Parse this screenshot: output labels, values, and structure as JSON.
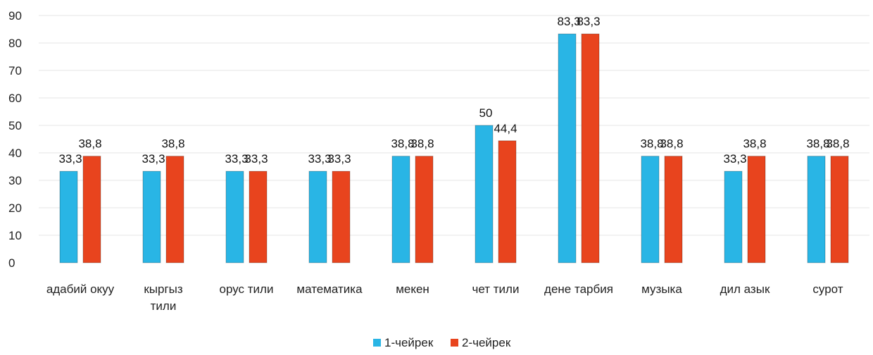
{
  "chart_data": {
    "type": "bar",
    "categories": [
      "адабий окуу",
      "кыргыз тили",
      "орус тили",
      "математика",
      "мекен",
      "чет тили",
      "дене тарбия",
      "музыка",
      "дил азык",
      "сурот"
    ],
    "series": [
      {
        "name": "1-чейрек",
        "values": [
          33.3,
          33.3,
          33.3,
          33.3,
          38.8,
          50,
          83.3,
          38.8,
          33.3,
          38.8
        ],
        "labels": [
          "33,3",
          "33,3",
          "33,3",
          "33,3",
          "38,8",
          "50",
          "83,3",
          "38,8",
          "33,3",
          "38,8"
        ]
      },
      {
        "name": "2-чейрек",
        "values": [
          38.8,
          38.8,
          33.3,
          33.3,
          38.8,
          44.4,
          83.3,
          38.8,
          38.8,
          38.8
        ],
        "labels": [
          "38,8",
          "38,8",
          "33,3",
          "33,3",
          "38,8",
          "44,4",
          "83,3",
          "38,8",
          "38,8",
          "38,8"
        ]
      }
    ],
    "yticks": [
      0,
      10,
      20,
      30,
      40,
      50,
      60,
      70,
      80,
      90
    ],
    "ylim": [
      0,
      90
    ],
    "grid": true,
    "legend_position": "bottom",
    "colors": [
      "#29b5e5",
      "#e8441e"
    ],
    "title": "",
    "xlabel": "",
    "ylabel": ""
  }
}
